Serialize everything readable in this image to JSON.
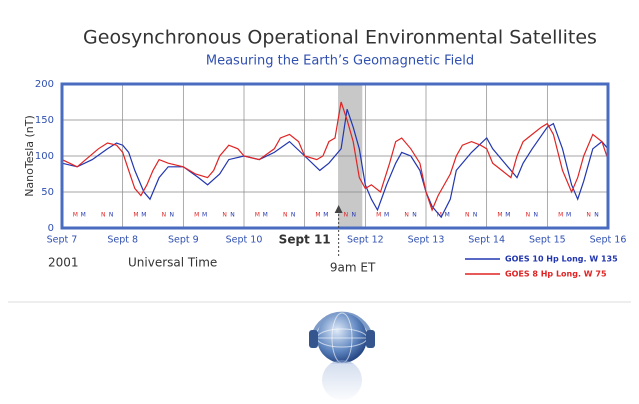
{
  "chart_data": {
    "type": "line",
    "title": "Geosynchronous Operational Environmental Satellites",
    "subtitle": "Measuring the Earth’s Geomagnetic Field",
    "y_label": "NanoTesla (nT)",
    "x_label": "Universal Time",
    "year_label": "2001",
    "annotation": {
      "text": "9am ET",
      "x": 11.56
    },
    "shaded_span": [
      11.55,
      11.95
    ],
    "emphasized_xtick_value": 11,
    "xlim": [
      7,
      16
    ],
    "xticks": [
      {
        "value": 7,
        "label": "Sept 7"
      },
      {
        "value": 8,
        "label": "Sept 8"
      },
      {
        "value": 9,
        "label": "Sept 9"
      },
      {
        "value": 10,
        "label": "Sept 10"
      },
      {
        "value": 11,
        "label": "Sept 11"
      },
      {
        "value": 12,
        "label": "Sept 12"
      },
      {
        "value": 13,
        "label": "Sept 13"
      },
      {
        "value": 14,
        "label": "Sept 14"
      },
      {
        "value": 15,
        "label": "Sept 15"
      },
      {
        "value": 16,
        "label": "Sept 16"
      }
    ],
    "ylim": [
      0,
      200
    ],
    "yticks": [
      0,
      50,
      100,
      150,
      200
    ],
    "grid": true,
    "legend": "bottom-right",
    "series": [
      {
        "name": "GOES 10 Hp Long. W 135",
        "color": "#2236b0",
        "x": [
          7,
          7.25,
          7.5,
          7.75,
          7.9,
          8,
          8.1,
          8.2,
          8.35,
          8.45,
          8.6,
          8.75,
          9,
          9.25,
          9.4,
          9.6,
          9.75,
          10,
          10.25,
          10.5,
          10.75,
          11,
          11.25,
          11.4,
          11.6,
          11.7,
          11.8,
          11.9,
          12,
          12.1,
          12.2,
          12.35,
          12.5,
          12.6,
          12.75,
          12.9,
          13,
          13.1,
          13.25,
          13.4,
          13.5,
          13.75,
          14,
          14.1,
          14.25,
          14.4,
          14.5,
          14.6,
          14.75,
          15,
          15.1,
          15.25,
          15.4,
          15.5,
          15.6,
          15.75,
          15.9,
          16
        ],
        "values": [
          90,
          85,
          95,
          110,
          118,
          115,
          105,
          80,
          50,
          40,
          70,
          85,
          85,
          70,
          60,
          75,
          95,
          100,
          95,
          105,
          120,
          100,
          80,
          90,
          110,
          165,
          140,
          110,
          60,
          40,
          25,
          60,
          90,
          105,
          100,
          80,
          50,
          30,
          15,
          40,
          80,
          105,
          125,
          110,
          95,
          80,
          70,
          90,
          110,
          140,
          145,
          110,
          60,
          40,
          65,
          110,
          120,
          110
        ]
      },
      {
        "name": "GOES 8 Hp Long. W 75",
        "color": "#e02424",
        "x": [
          7,
          7.25,
          7.6,
          7.75,
          7.9,
          8,
          8.1,
          8.2,
          8.3,
          8.4,
          8.5,
          8.6,
          8.75,
          9,
          9.2,
          9.4,
          9.5,
          9.6,
          9.75,
          9.9,
          10,
          10.25,
          10.5,
          10.6,
          10.75,
          10.9,
          11,
          11.2,
          11.3,
          11.4,
          11.5,
          11.6,
          11.7,
          11.8,
          11.9,
          12,
          12.1,
          12.25,
          12.4,
          12.5,
          12.6,
          12.75,
          12.9,
          13,
          13.1,
          13.2,
          13.4,
          13.5,
          13.6,
          13.75,
          13.9,
          14,
          14.1,
          14.25,
          14.4,
          14.5,
          14.6,
          14.75,
          14.9,
          15,
          15.1,
          15.25,
          15.4,
          15.5,
          15.6,
          15.75,
          15.9,
          16
        ],
        "values": [
          95,
          85,
          110,
          118,
          115,
          105,
          80,
          55,
          45,
          60,
          80,
          95,
          90,
          85,
          75,
          70,
          80,
          100,
          115,
          110,
          100,
          95,
          110,
          125,
          130,
          120,
          100,
          95,
          100,
          120,
          125,
          175,
          150,
          120,
          70,
          55,
          60,
          50,
          90,
          120,
          125,
          110,
          90,
          50,
          25,
          45,
          75,
          100,
          115,
          120,
          115,
          110,
          90,
          80,
          70,
          100,
          120,
          130,
          140,
          145,
          130,
          80,
          50,
          70,
          100,
          130,
          120,
          95
        ]
      }
    ],
    "markers": [
      {
        "label": "M",
        "color": "#e02424",
        "x": [
          7.22,
          8.22,
          9.22,
          10.22,
          11.22,
          12.22,
          13.22,
          14.22,
          15.22
        ]
      },
      {
        "label": "M",
        "color": "#2236b0",
        "x": [
          7.35,
          8.35,
          9.35,
          10.35,
          11.35,
          12.35,
          13.35,
          14.35,
          15.35
        ]
      },
      {
        "label": "N",
        "color": "#e02424",
        "x": [
          7.68,
          8.68,
          9.68,
          10.68,
          11.68,
          12.68,
          13.68,
          14.68,
          15.68
        ]
      },
      {
        "label": "N",
        "color": "#2236b0",
        "x": [
          7.81,
          8.81,
          9.81,
          10.81,
          11.81,
          12.81,
          13.81,
          14.81,
          15.81
        ]
      }
    ]
  }
}
